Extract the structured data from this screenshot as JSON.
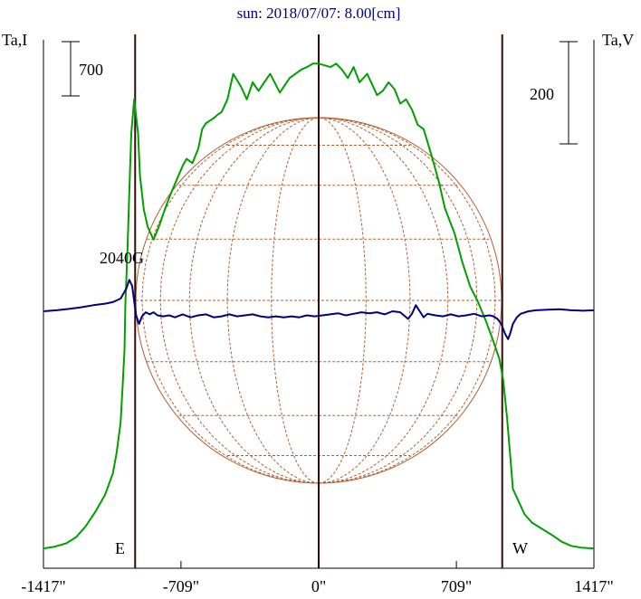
{
  "chart_data": {
    "type": "line",
    "title": "sun: 2018/07/07: 8.00[cm]",
    "y_left_label": "Ta,I",
    "y_right_label": "Ta,V",
    "x_ticks": [
      "-1417\"",
      "-709\"",
      "0\"",
      "709\"",
      "1417\""
    ],
    "xlim": [
      -1417,
      1417
    ],
    "scale_bar_I": "700",
    "scale_bar_V": "200",
    "annotation": "2040G",
    "limb_labels": {
      "east": "E",
      "west": "W"
    },
    "limb_x": [
      -945,
      945
    ],
    "center_x": 0,
    "series": [
      {
        "color": "#00a000",
        "x": [
          -1417,
          -1360,
          -1300,
          -1250,
          -1200,
          -1150,
          -1100,
          -1060,
          -1040,
          -1020,
          -1010,
          -1000,
          -995,
          -985,
          -975,
          -965,
          -950,
          -930,
          -920,
          -900,
          -880,
          -850,
          -820,
          -790,
          -760,
          -730,
          -700,
          -680,
          -650,
          -620,
          -600,
          -580,
          -560,
          -540,
          -520,
          -500,
          -470,
          -440,
          -400,
          -370,
          -340,
          -310,
          -280,
          -250,
          -200,
          -150,
          -120,
          -90,
          -60,
          -30,
          0,
          30,
          60,
          90,
          120,
          150,
          180,
          210,
          250,
          280,
          300,
          330,
          360,
          390,
          420,
          450,
          480,
          510,
          540,
          580,
          620,
          650,
          700,
          740,
          780,
          820,
          860,
          900,
          930,
          950,
          970,
          990,
          1000,
          1020,
          1040,
          1060,
          1100,
          1150,
          1200,
          1250,
          1300,
          1350,
          1417
        ],
        "values": [
          0.02,
          0.04,
          0.08,
          0.15,
          0.28,
          0.45,
          0.65,
          0.9,
          1.15,
          1.5,
          1.9,
          2.35,
          2.9,
          3.5,
          4.2,
          4.9,
          5.3,
          4.9,
          4.4,
          4.0,
          3.8,
          3.65,
          3.82,
          4.02,
          4.2,
          4.36,
          4.52,
          4.6,
          4.55,
          4.72,
          4.95,
          5.02,
          5.05,
          5.08,
          5.12,
          5.15,
          5.3,
          5.6,
          5.45,
          5.3,
          5.5,
          5.4,
          5.5,
          5.6,
          5.38,
          5.55,
          5.6,
          5.65,
          5.68,
          5.72,
          5.72,
          5.7,
          5.68,
          5.72,
          5.65,
          5.55,
          5.68,
          5.5,
          5.6,
          5.45,
          5.35,
          5.4,
          5.5,
          5.42,
          5.25,
          5.3,
          5.18,
          5.0,
          4.95,
          4.65,
          4.32,
          4.02,
          3.72,
          3.38,
          3.1,
          2.92,
          2.7,
          2.45,
          2.25,
          2.0,
          1.55,
          1.0,
          0.72,
          0.62,
          0.52,
          0.42,
          0.32,
          0.25,
          0.18,
          0.1,
          0.05,
          0.03,
          0.02
        ]
      },
      {
        "color": "#000080",
        "x": [
          -1417,
          -1350,
          -1280,
          -1220,
          -1160,
          -1100,
          -1060,
          -1020,
          -990,
          -975,
          -960,
          -950,
          -940,
          -925,
          -910,
          -890,
          -870,
          -850,
          -830,
          -800,
          -770,
          -740,
          -700,
          -660,
          -620,
          -580,
          -540,
          -500,
          -460,
          -420,
          -380,
          -340,
          -300,
          -260,
          -220,
          -180,
          -140,
          -100,
          -60,
          -20,
          20,
          60,
          100,
          140,
          180,
          220,
          260,
          300,
          340,
          380,
          420,
          460,
          480,
          500,
          520,
          540,
          560,
          600,
          640,
          680,
          720,
          760,
          800,
          840,
          880,
          900,
          920,
          940,
          960,
          975,
          985,
          1000,
          1020,
          1040,
          1080,
          1120,
          1180,
          1240,
          1300,
          1360,
          1417
        ],
        "values": [
          0.0,
          0.02,
          0.05,
          0.08,
          0.12,
          0.15,
          0.18,
          0.25,
          0.45,
          0.62,
          0.5,
          0.2,
          -0.08,
          -0.25,
          -0.1,
          -0.02,
          -0.06,
          -0.02,
          -0.08,
          -0.1,
          -0.08,
          -0.12,
          -0.06,
          -0.12,
          -0.08,
          -0.06,
          -0.12,
          -0.1,
          -0.06,
          -0.1,
          -0.08,
          -0.06,
          -0.1,
          -0.12,
          -0.1,
          -0.12,
          -0.1,
          -0.12,
          -0.08,
          -0.1,
          -0.08,
          -0.06,
          -0.04,
          -0.08,
          -0.05,
          -0.02,
          -0.04,
          -0.02,
          -0.06,
          0.0,
          -0.02,
          -0.15,
          -0.05,
          0.12,
          0.0,
          -0.12,
          -0.05,
          -0.08,
          -0.1,
          -0.06,
          -0.1,
          -0.08,
          -0.05,
          -0.1,
          -0.08,
          -0.1,
          -0.15,
          -0.25,
          -0.45,
          -0.55,
          -0.45,
          -0.25,
          -0.12,
          -0.05,
          0.0,
          0.02,
          0.03,
          0.04,
          0.02,
          0.01,
          0.02
        ]
      }
    ]
  }
}
